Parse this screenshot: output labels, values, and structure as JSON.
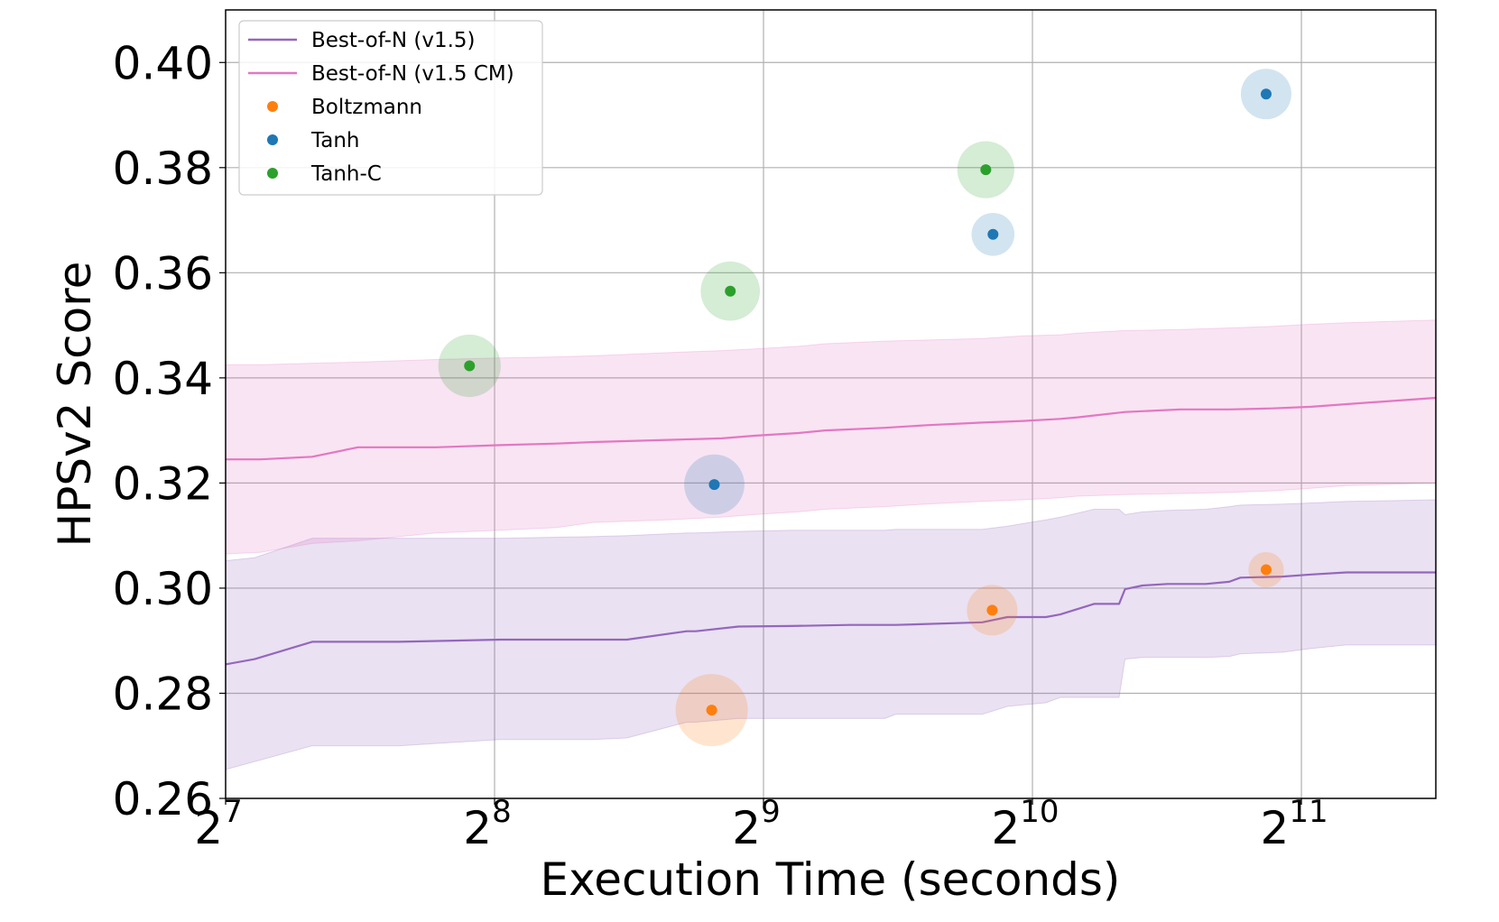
{
  "chart_data": {
    "type": "line",
    "title": "",
    "xlabel": "Execution Time (seconds)",
    "ylabel": "HPSv2 Score",
    "x_scale": "log2",
    "xlim": [
      128,
      2896
    ],
    "ylim": [
      0.26,
      0.41
    ],
    "grid": true,
    "legend_position": "top-left",
    "x_ticks": [
      {
        "value": 128,
        "base": "2",
        "exp": "7"
      },
      {
        "value": 256,
        "base": "2",
        "exp": "8"
      },
      {
        "value": 512,
        "base": "2",
        "exp": "9"
      },
      {
        "value": 1024,
        "base": "2",
        "exp": "10"
      },
      {
        "value": 2048,
        "base": "2",
        "exp": "11"
      }
    ],
    "y_ticks": [
      "0.26",
      "0.28",
      "0.30",
      "0.32",
      "0.34",
      "0.36",
      "0.38",
      "0.40"
    ],
    "legend": [
      {
        "label": "Best-of-N (v1.5)",
        "kind": "line",
        "color": "#9467bd"
      },
      {
        "label": "Best-of-N (v1.5 CM)",
        "kind": "line",
        "color": "#e377c2"
      },
      {
        "label": "Boltzmann",
        "kind": "dot",
        "color": "#ff7f0e"
      },
      {
        "label": "Tanh",
        "kind": "dot",
        "color": "#1f77b4"
      },
      {
        "label": "Tanh-C",
        "kind": "dot",
        "color": "#2ca02c"
      }
    ],
    "series": [
      {
        "name": "Best-of-N (v1.5)",
        "color": "#9467bd",
        "band_color": "#9467bd",
        "x": [
          128,
          138,
          160,
          200,
          260,
          330,
          360,
          420,
          430,
          480,
          550,
          640,
          700,
          720,
          900,
          960,
          1060,
          1100,
          1200,
          1280,
          1300,
          1360,
          1450,
          1600,
          1700,
          1750,
          1950,
          2100,
          2300,
          2896
        ],
        "y": [
          0.2855,
          0.2865,
          0.2898,
          0.2898,
          0.2902,
          0.2902,
          0.2902,
          0.2918,
          0.2918,
          0.2927,
          0.2928,
          0.293,
          0.293,
          0.293,
          0.2935,
          0.2945,
          0.2945,
          0.295,
          0.297,
          0.297,
          0.2998,
          0.3005,
          0.3008,
          0.3008,
          0.3012,
          0.302,
          0.3022,
          0.3026,
          0.303,
          0.303
        ],
        "lower": [
          0.2655,
          0.267,
          0.27,
          0.27,
          0.2712,
          0.2712,
          0.2715,
          0.2745,
          0.2745,
          0.2752,
          0.2752,
          0.2752,
          0.2752,
          0.276,
          0.276,
          0.2775,
          0.2782,
          0.2792,
          0.2792,
          0.2792,
          0.2865,
          0.2868,
          0.2868,
          0.2868,
          0.287,
          0.2875,
          0.2878,
          0.2885,
          0.2892,
          0.2892
        ],
        "upper": [
          0.3052,
          0.3058,
          0.3095,
          0.3095,
          0.3095,
          0.3098,
          0.31,
          0.3105,
          0.3105,
          0.3108,
          0.311,
          0.311,
          0.311,
          0.3112,
          0.3112,
          0.3118,
          0.313,
          0.3135,
          0.315,
          0.315,
          0.314,
          0.3145,
          0.3148,
          0.315,
          0.3155,
          0.3158,
          0.316,
          0.3162,
          0.3165,
          0.3168
        ]
      },
      {
        "name": "Best-of-N (v1.5 CM)",
        "color": "#e377c2",
        "band_color": "#e377c2",
        "x": [
          128,
          140,
          160,
          180,
          220,
          260,
          300,
          330,
          400,
          460,
          500,
          560,
          600,
          700,
          780,
          900,
          1000,
          1100,
          1150,
          1300,
          1500,
          1700,
          1900,
          2100,
          2300,
          2896
        ],
        "y": [
          0.3245,
          0.3245,
          0.325,
          0.3268,
          0.3268,
          0.3272,
          0.3275,
          0.3278,
          0.3282,
          0.3285,
          0.329,
          0.3295,
          0.33,
          0.3305,
          0.331,
          0.3315,
          0.3318,
          0.3322,
          0.3325,
          0.3335,
          0.334,
          0.334,
          0.3342,
          0.3345,
          0.335,
          0.3362
        ],
        "lower": [
          0.3065,
          0.3068,
          0.3085,
          0.309,
          0.3105,
          0.311,
          0.3115,
          0.3125,
          0.313,
          0.3135,
          0.314,
          0.3145,
          0.315,
          0.3155,
          0.316,
          0.3165,
          0.3168,
          0.3172,
          0.3175,
          0.3178,
          0.318,
          0.3182,
          0.3185,
          0.319,
          0.3195,
          0.32
        ],
        "upper": [
          0.3425,
          0.3425,
          0.3428,
          0.343,
          0.3435,
          0.3438,
          0.344,
          0.3442,
          0.3448,
          0.3452,
          0.3455,
          0.346,
          0.3465,
          0.347,
          0.3472,
          0.3475,
          0.348,
          0.3482,
          0.3485,
          0.349,
          0.3492,
          0.3495,
          0.3498,
          0.3502,
          0.3505,
          0.351
        ]
      }
    ],
    "points": [
      {
        "name": "Boltzmann",
        "color": "#ff7f0e",
        "data": [
          {
            "x": 448,
            "y": 0.2768,
            "size": 1.0
          },
          {
            "x": 923,
            "y": 0.2958,
            "size": 0.6
          },
          {
            "x": 1870,
            "y": 0.3035,
            "size": 0.32
          }
        ]
      },
      {
        "name": "Tanh",
        "color": "#1f77b4",
        "data": [
          {
            "x": 451,
            "y": 0.3197,
            "size": 0.78
          },
          {
            "x": 925,
            "y": 0.3673,
            "size": 0.46
          },
          {
            "x": 1870,
            "y": 0.394,
            "size": 0.6
          }
        ]
      },
      {
        "name": "Tanh-C",
        "color": "#2ca02c",
        "data": [
          {
            "x": 240,
            "y": 0.3423,
            "size": 0.82
          },
          {
            "x": 470,
            "y": 0.3565,
            "size": 0.76
          },
          {
            "x": 908,
            "y": 0.3796,
            "size": 0.72
          }
        ]
      }
    ]
  }
}
